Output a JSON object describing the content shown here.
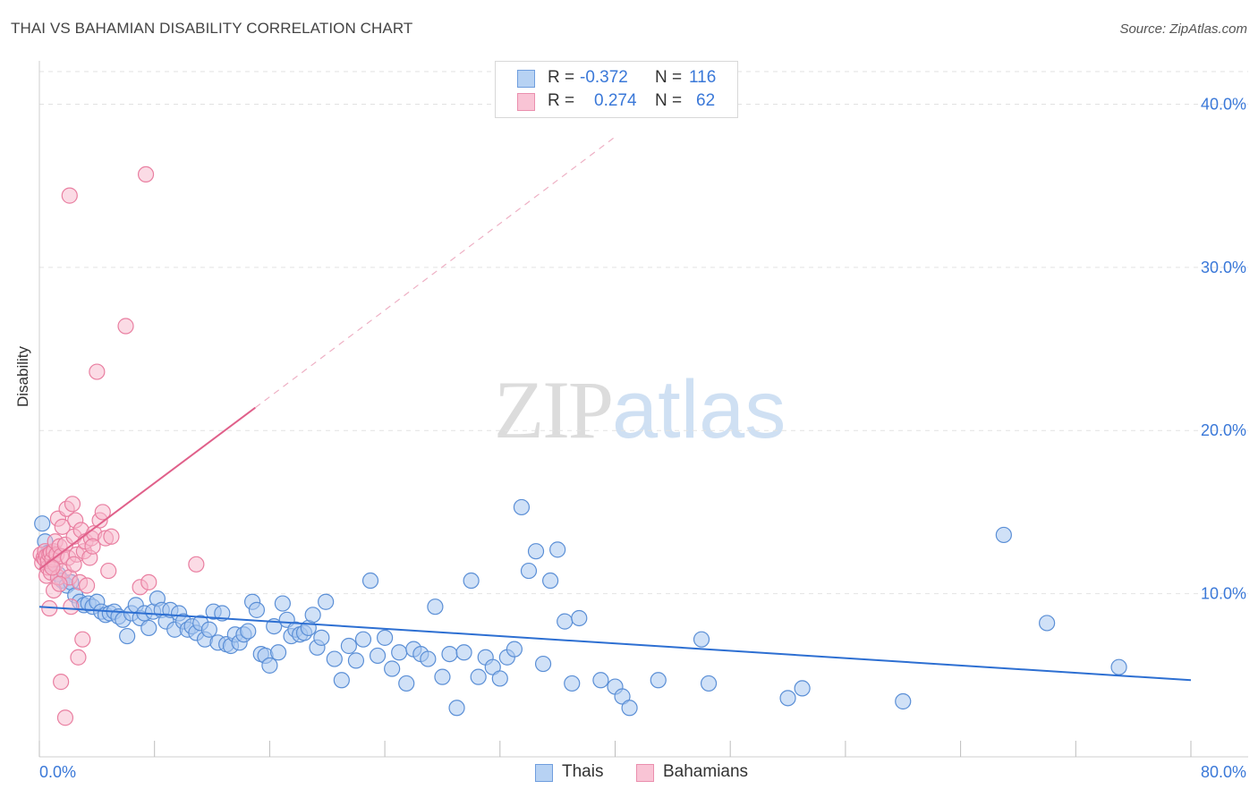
{
  "header": {
    "title": "THAI VS BAHAMIAN DISABILITY CORRELATION CHART",
    "source": "Source: ZipAtlas.com"
  },
  "legend": {
    "row1": {
      "r_label": "R =",
      "r_value": "-0.372",
      "n_label": "N =",
      "n_value": "116"
    },
    "row2": {
      "r_label": "R =",
      "r_value": "0.274",
      "n_label": "N =",
      "n_value": "62"
    }
  },
  "watermark": {
    "zip": "ZIP",
    "atlas": "atlas"
  },
  "colors": {
    "thai_fill": "#a9c9f0",
    "thai_stroke": "#5b8fd6",
    "thai_line": "#2d6fd2",
    "bahamian_fill": "#f7b8cc",
    "bahamian_stroke": "#e97fa1",
    "bahamian_line": "#e0608a",
    "axis_label": "#3a78d8",
    "grid": "#e2e2e2"
  },
  "chart_data": {
    "type": "scatter",
    "title": "THAI VS BAHAMIAN DISABILITY CORRELATION CHART",
    "xlabel": "",
    "ylabel": "Disability",
    "xlim": [
      0,
      80
    ],
    "ylim": [
      0,
      42
    ],
    "x_tick_labels": [
      "0.0%",
      "80.0%"
    ],
    "y_ticks": [
      10,
      20,
      30,
      40
    ],
    "y_tick_labels": [
      "10.0%",
      "20.0%",
      "30.0%",
      "40.0%"
    ],
    "grid": true,
    "legend_position": "bottom",
    "series": [
      {
        "name": "Thais",
        "r": -0.372,
        "n": 116,
        "trend": {
          "x": [
            0,
            80
          ],
          "y": [
            9.2,
            4.7
          ],
          "style": "solid"
        },
        "points": [
          [
            0.2,
            14.3
          ],
          [
            0.4,
            13.2
          ],
          [
            0.6,
            12.5
          ],
          [
            0.8,
            11.8
          ],
          [
            1.0,
            12.6
          ],
          [
            1.3,
            11.2
          ],
          [
            1.6,
            10.8
          ],
          [
            1.9,
            10.5
          ],
          [
            2.2,
            10.7
          ],
          [
            2.5,
            9.9
          ],
          [
            2.8,
            9.5
          ],
          [
            3.1,
            9.3
          ],
          [
            3.4,
            9.4
          ],
          [
            3.7,
            9.2
          ],
          [
            4.0,
            9.5
          ],
          [
            4.3,
            8.9
          ],
          [
            4.6,
            8.7
          ],
          [
            4.9,
            8.8
          ],
          [
            5.2,
            8.9
          ],
          [
            5.5,
            8.6
          ],
          [
            5.8,
            8.4
          ],
          [
            6.1,
            7.4
          ],
          [
            6.4,
            8.8
          ],
          [
            6.7,
            9.3
          ],
          [
            7.0,
            8.5
          ],
          [
            7.3,
            8.8
          ],
          [
            7.6,
            7.9
          ],
          [
            7.9,
            8.9
          ],
          [
            8.2,
            9.7
          ],
          [
            8.5,
            9.0
          ],
          [
            8.8,
            8.3
          ],
          [
            9.1,
            9.0
          ],
          [
            9.4,
            7.8
          ],
          [
            9.7,
            8.8
          ],
          [
            10.0,
            8.3
          ],
          [
            10.3,
            7.8
          ],
          [
            10.6,
            8.0
          ],
          [
            10.9,
            7.6
          ],
          [
            11.2,
            8.2
          ],
          [
            11.5,
            7.2
          ],
          [
            11.8,
            7.8
          ],
          [
            12.1,
            8.9
          ],
          [
            12.4,
            7.0
          ],
          [
            12.7,
            8.8
          ],
          [
            13.0,
            6.9
          ],
          [
            13.3,
            6.8
          ],
          [
            13.6,
            7.5
          ],
          [
            13.9,
            7.0
          ],
          [
            14.2,
            7.5
          ],
          [
            14.5,
            7.7
          ],
          [
            14.8,
            9.5
          ],
          [
            15.1,
            9.0
          ],
          [
            15.4,
            6.3
          ],
          [
            15.7,
            6.2
          ],
          [
            16.0,
            5.6
          ],
          [
            16.3,
            8.0
          ],
          [
            16.6,
            6.4
          ],
          [
            16.9,
            9.4
          ],
          [
            17.2,
            8.4
          ],
          [
            17.5,
            7.4
          ],
          [
            17.8,
            7.8
          ],
          [
            18.1,
            7.5
          ],
          [
            18.4,
            7.6
          ],
          [
            18.7,
            7.9
          ],
          [
            19.0,
            8.7
          ],
          [
            19.3,
            6.7
          ],
          [
            19.6,
            7.3
          ],
          [
            19.9,
            9.5
          ],
          [
            20.5,
            6.0
          ],
          [
            21.0,
            4.7
          ],
          [
            21.5,
            6.8
          ],
          [
            22.0,
            5.9
          ],
          [
            22.5,
            7.2
          ],
          [
            23.0,
            10.8
          ],
          [
            23.5,
            6.2
          ],
          [
            24.0,
            7.3
          ],
          [
            24.5,
            5.4
          ],
          [
            25.0,
            6.4
          ],
          [
            25.5,
            4.5
          ],
          [
            26.0,
            6.6
          ],
          [
            26.5,
            6.3
          ],
          [
            27.0,
            6.0
          ],
          [
            27.5,
            9.2
          ],
          [
            28.0,
            4.9
          ],
          [
            28.5,
            6.3
          ],
          [
            29.0,
            3.0
          ],
          [
            29.5,
            6.4
          ],
          [
            30.0,
            10.8
          ],
          [
            30.5,
            4.9
          ],
          [
            31.0,
            6.1
          ],
          [
            31.5,
            5.5
          ],
          [
            32.0,
            4.8
          ],
          [
            32.5,
            6.1
          ],
          [
            33.0,
            6.6
          ],
          [
            33.5,
            15.3
          ],
          [
            34.0,
            11.4
          ],
          [
            34.5,
            12.6
          ],
          [
            35.0,
            5.7
          ],
          [
            35.5,
            10.8
          ],
          [
            36.0,
            12.7
          ],
          [
            36.5,
            8.3
          ],
          [
            37.0,
            4.5
          ],
          [
            37.5,
            8.5
          ],
          [
            39.0,
            4.7
          ],
          [
            40.0,
            4.3
          ],
          [
            40.5,
            3.7
          ],
          [
            41.0,
            3.0
          ],
          [
            43.0,
            4.7
          ],
          [
            46.0,
            7.2
          ],
          [
            46.5,
            4.5
          ],
          [
            52.0,
            3.6
          ],
          [
            53.0,
            4.2
          ],
          [
            60.0,
            3.4
          ],
          [
            67.0,
            13.6
          ],
          [
            70.0,
            8.2
          ],
          [
            75.0,
            5.5
          ]
        ]
      },
      {
        "name": "Bahamians",
        "r": 0.274,
        "n": 62,
        "trend": {
          "x": [
            0,
            15,
            40
          ],
          "y": [
            11.5,
            21.4,
            38.0
          ],
          "solid_until": 15
        },
        "points": [
          [
            0.1,
            12.4
          ],
          [
            0.2,
            11.9
          ],
          [
            0.3,
            12.2
          ],
          [
            0.4,
            12.1
          ],
          [
            0.4,
            12.6
          ],
          [
            0.5,
            11.1
          ],
          [
            0.5,
            12.3
          ],
          [
            0.6,
            11.6
          ],
          [
            0.6,
            12.0
          ],
          [
            0.7,
            12.4
          ],
          [
            0.7,
            9.1
          ],
          [
            0.8,
            11.3
          ],
          [
            0.8,
            12.5
          ],
          [
            0.9,
            12.1
          ],
          [
            1.0,
            12.6
          ],
          [
            1.0,
            10.2
          ],
          [
            1.1,
            11.8
          ],
          [
            1.1,
            13.2
          ],
          [
            1.2,
            12.4
          ],
          [
            1.3,
            11.0
          ],
          [
            1.3,
            14.6
          ],
          [
            1.4,
            12.9
          ],
          [
            1.5,
            12.3
          ],
          [
            1.5,
            4.6
          ],
          [
            1.6,
            14.1
          ],
          [
            1.7,
            11.4
          ],
          [
            1.8,
            13.0
          ],
          [
            1.8,
            2.4
          ],
          [
            1.9,
            15.2
          ],
          [
            2.0,
            12.2
          ],
          [
            2.1,
            34.4
          ],
          [
            2.1,
            11.0
          ],
          [
            2.2,
            9.2
          ],
          [
            2.3,
            15.5
          ],
          [
            2.4,
            13.5
          ],
          [
            2.5,
            14.5
          ],
          [
            2.6,
            12.4
          ],
          [
            2.7,
            6.1
          ],
          [
            2.8,
            10.7
          ],
          [
            2.9,
            13.9
          ],
          [
            3.0,
            7.2
          ],
          [
            3.1,
            12.6
          ],
          [
            3.2,
            13.2
          ],
          [
            3.3,
            10.5
          ],
          [
            3.5,
            12.2
          ],
          [
            3.6,
            13.4
          ],
          [
            3.8,
            13.7
          ],
          [
            4.0,
            23.6
          ],
          [
            4.2,
            14.5
          ],
          [
            4.4,
            15.0
          ],
          [
            4.6,
            13.4
          ],
          [
            4.8,
            11.4
          ],
          [
            5.0,
            13.5
          ],
          [
            6.0,
            26.4
          ],
          [
            7.0,
            10.4
          ],
          [
            7.4,
            35.7
          ],
          [
            7.6,
            10.7
          ],
          [
            10.9,
            11.8
          ],
          [
            0.9,
            11.6
          ],
          [
            1.4,
            10.6
          ],
          [
            2.4,
            11.8
          ],
          [
            3.7,
            12.9
          ]
        ]
      }
    ]
  }
}
